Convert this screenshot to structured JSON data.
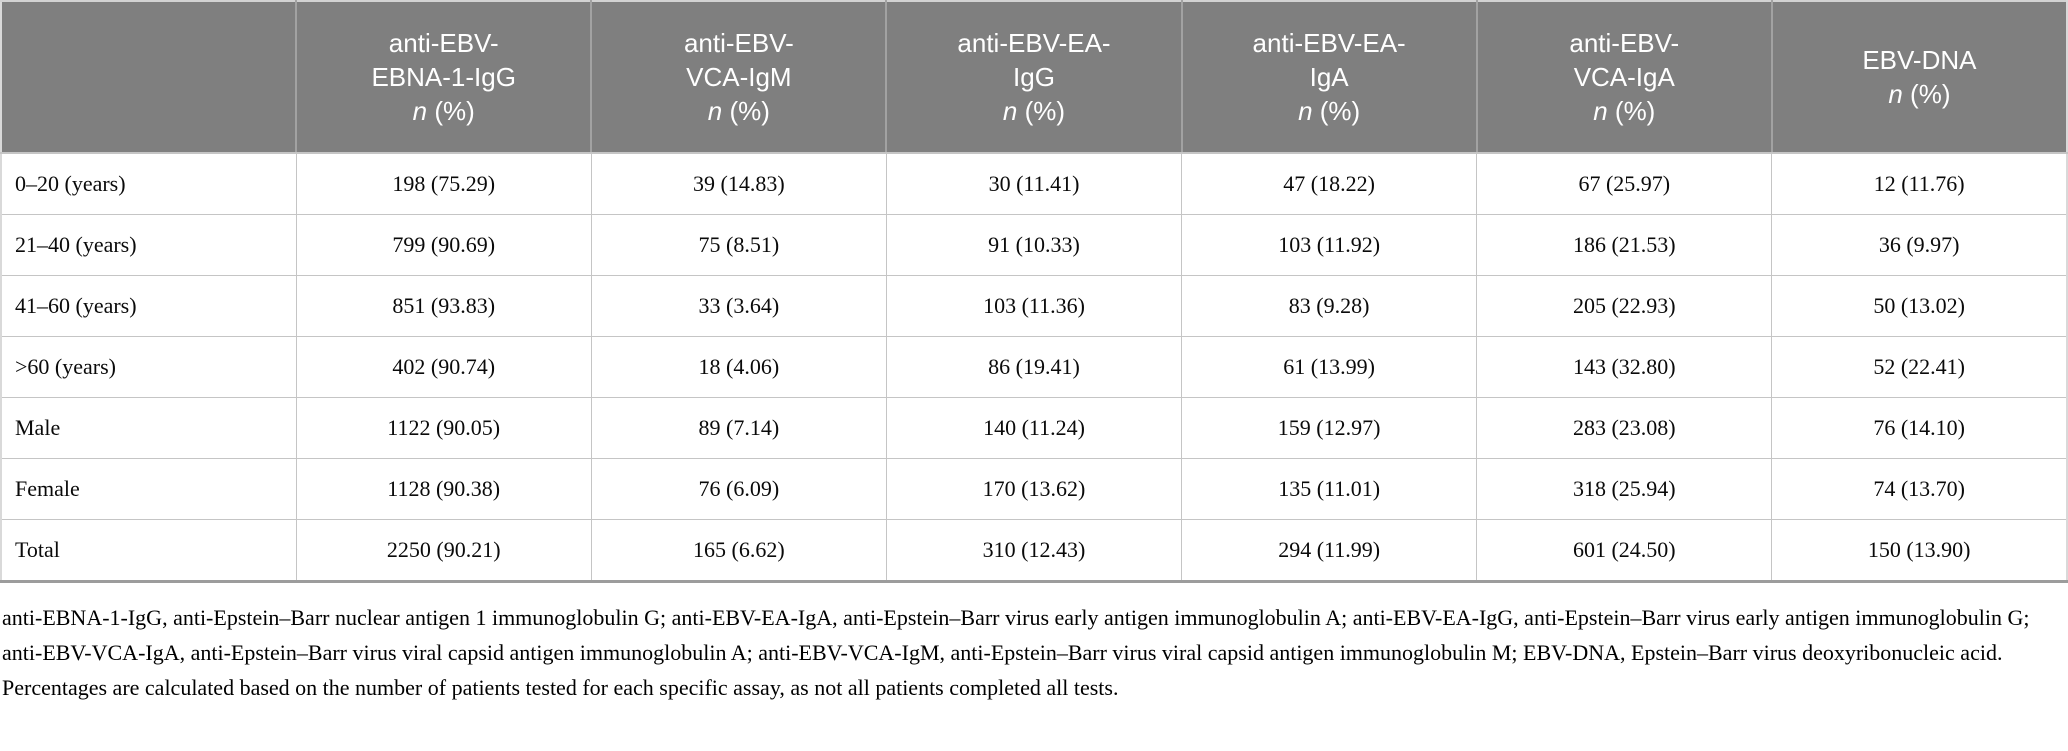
{
  "colors": {
    "header_bg": "#7f7f7f",
    "header_text": "#ffffff",
    "grid_line": "#c5c5c5",
    "header_divider": "#a2a2a2",
    "bottom_rule": "#9c9c9c"
  },
  "table": {
    "headers": [
      {
        "name": "anti-EBV-\nEBNA-1-IgG",
        "n": "n",
        "pct": "(%)"
      },
      {
        "name": "anti-EBV-\nVCA-IgM",
        "n": "n",
        "pct": "(%)"
      },
      {
        "name": "anti-EBV-EA-\nIgG",
        "n": "n",
        "pct": "(%)"
      },
      {
        "name": "anti-EBV-EA-\nIgA",
        "n": "n",
        "pct": "(%)"
      },
      {
        "name": "anti-EBV-\nVCA-IgA",
        "n": "n",
        "pct": "(%)"
      },
      {
        "name": "EBV-DNA",
        "n": "n",
        "pct": "(%)"
      }
    ],
    "rows": [
      {
        "label": "0–20 (years)",
        "cells": [
          "198 (75.29)",
          "39 (14.83)",
          "30 (11.41)",
          "47 (18.22)",
          "67 (25.97)",
          "12 (11.76)"
        ]
      },
      {
        "label": "21–40 (years)",
        "cells": [
          "799 (90.69)",
          "75 (8.51)",
          "91 (10.33)",
          "103 (11.92)",
          "186 (21.53)",
          "36 (9.97)"
        ]
      },
      {
        "label": "41–60 (years)",
        "cells": [
          "851 (93.83)",
          "33 (3.64)",
          "103 (11.36)",
          "83 (9.28)",
          "205 (22.93)",
          "50 (13.02)"
        ]
      },
      {
        "label": ">60 (years)",
        "cells": [
          "402 (90.74)",
          "18 (4.06)",
          "86 (19.41)",
          "61 (13.99)",
          "143 (32.80)",
          "52 (22.41)"
        ]
      },
      {
        "label": "Male",
        "cells": [
          "1122 (90.05)",
          "89 (7.14)",
          "140 (11.24)",
          "159 (12.97)",
          "283 (23.08)",
          "76 (14.10)"
        ]
      },
      {
        "label": "Female",
        "cells": [
          "1128 (90.38)",
          "76 (6.09)",
          "170 (13.62)",
          "135 (11.01)",
          "318 (25.94)",
          "74 (13.70)"
        ]
      },
      {
        "label": "Total",
        "cells": [
          "2250 (90.21)",
          "165 (6.62)",
          "310 (12.43)",
          "294 (11.99)",
          "601 (24.50)",
          "150 (13.90)"
        ]
      }
    ]
  },
  "footnote": "anti-EBNA-1-IgG, anti-Epstein–Barr nuclear antigen 1 immunoglobulin G; anti-EBV-EA-IgA, anti-Epstein–Barr virus early antigen immunoglobulin A; anti-EBV-EA-IgG, anti-Epstein–Barr virus early antigen immunoglobulin G; anti-EBV-VCA-IgA, anti-Epstein–Barr virus viral capsid antigen immunoglobulin A; anti-EBV-VCA-IgM, anti-Epstein–Barr virus viral capsid antigen immunoglobulin M; EBV-DNA, Epstein–Barr virus deoxyribonucleic acid. Percentages are calculated based on the number of patients tested for each specific assay, as not all patients completed all tests."
}
